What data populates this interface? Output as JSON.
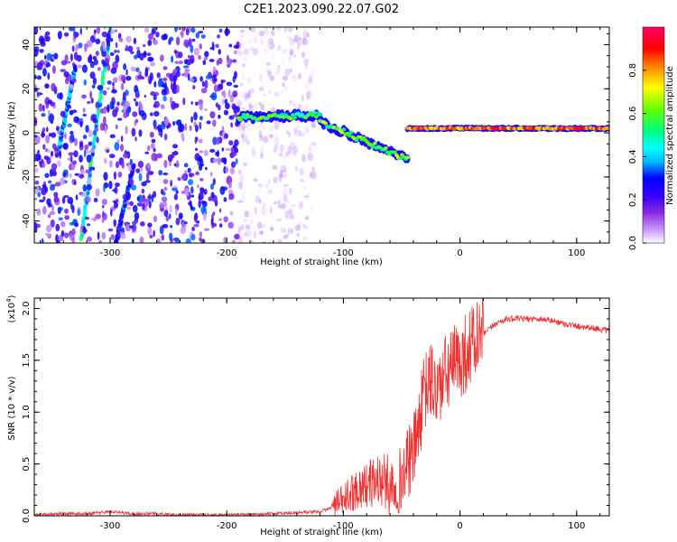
{
  "title": "C2E1.2023.090.22.07.G02",
  "chart_data": [
    {
      "type": "heatmap",
      "xlabel": "Height of straight line (km)",
      "ylabel": "Frequency (Hz)",
      "xlim": [
        -365,
        128
      ],
      "ylim": [
        -50,
        48
      ],
      "xticks": [
        "-300",
        "-200",
        "-100",
        "0",
        "100"
      ],
      "xtick_values": [
        -300,
        -200,
        -100,
        0,
        100
      ],
      "yticks": [
        "-40",
        "-20",
        "0",
        "20",
        "40"
      ],
      "ytick_values": [
        -40,
        -20,
        0,
        20,
        40
      ],
      "colorbar": {
        "label": "Normalized spectral amplitude",
        "range": [
          0,
          1
        ],
        "ticks": [
          "0.0",
          "0.2",
          "0.4",
          "0.6",
          "0.8"
        ],
        "tick_values": [
          0.0,
          0.2,
          0.4,
          0.6,
          0.8
        ],
        "colormap": [
          "#ffffff",
          "#cc99ff",
          "#8a2be2",
          "#3300ff",
          "#0000ff",
          "#00bfff",
          "#00ffff",
          "#00ff80",
          "#66ff00",
          "#ffff00",
          "#ff8000",
          "#ff0000",
          "#ff0066"
        ]
      },
      "features": [
        {
          "kind": "diagonal-streak",
          "x": [
            -345,
            -330
          ],
          "y": [
            -10,
            30
          ],
          "amplitude": 0.35
        },
        {
          "kind": "diagonal-streak",
          "x": [
            -325,
            -300
          ],
          "y": [
            -48,
            48
          ],
          "amplitude": 0.45
        },
        {
          "kind": "diagonal-streak",
          "x": [
            -295,
            -280
          ],
          "y": [
            -50,
            -15
          ],
          "amplitude": 0.3
        },
        {
          "kind": "noise-cloud",
          "x": [
            -365,
            -190
          ],
          "y": [
            -50,
            48
          ],
          "amplitude": 0.25
        },
        {
          "kind": "noise-cloud-faint",
          "x": [
            -190,
            -125
          ],
          "y": [
            -50,
            48
          ],
          "amplitude": 0.08
        },
        {
          "kind": "carrier-line",
          "x": [
            -190,
            -120
          ],
          "y": [
            7,
            8
          ],
          "amplitude": 0.55
        },
        {
          "kind": "carrier-line",
          "x": [
            -120,
            -45
          ],
          "y": [
            5,
            -12
          ],
          "amplitude": 0.6
        },
        {
          "kind": "carrier-line",
          "x": [
            -45,
            128
          ],
          "y": [
            2,
            2
          ],
          "amplitude": 0.85
        }
      ]
    },
    {
      "type": "line",
      "xlabel": "Height of straight line (km)",
      "ylabel": "SNR (10 * v/v)",
      "y_multiplier": "(x10^4)",
      "xlim": [
        -365,
        128
      ],
      "ylim": [
        0,
        2.1
      ],
      "xticks": [
        "-300",
        "-200",
        "-100",
        "0",
        "100"
      ],
      "xtick_values": [
        -300,
        -200,
        -100,
        0,
        100
      ],
      "yticks": [
        "0.0",
        "0.5",
        "1.0",
        "1.5",
        "2.0"
      ],
      "ytick_values": [
        0.0,
        0.5,
        1.0,
        1.5,
        2.0
      ],
      "color": "#ee3333",
      "series": [
        {
          "x": [
            -365,
            -340,
            -320,
            -300,
            -280,
            -260,
            -240,
            -220,
            -200,
            -180,
            -160,
            -140,
            -120,
            -110,
            -100,
            -90,
            -80,
            -70,
            -60,
            -50,
            -45,
            -40,
            -35,
            -30,
            -25,
            -20,
            -15,
            -10,
            -5,
            0,
            10,
            20,
            30,
            40,
            50,
            60,
            70,
            80,
            90,
            100,
            110,
            120,
            128
          ],
          "y": [
            0.01,
            0.02,
            0.02,
            0.04,
            0.02,
            0.02,
            0.01,
            0.01,
            0.01,
            0.01,
            0.02,
            0.03,
            0.04,
            0.08,
            0.15,
            0.25,
            0.3,
            0.35,
            0.3,
            0.35,
            0.5,
            0.6,
            0.9,
            1.2,
            1.3,
            1.2,
            1.3,
            1.4,
            1.45,
            1.5,
            1.65,
            1.75,
            1.85,
            1.9,
            1.9,
            1.9,
            1.9,
            1.88,
            1.85,
            1.83,
            1.82,
            1.8,
            1.78
          ]
        }
      ]
    }
  ]
}
